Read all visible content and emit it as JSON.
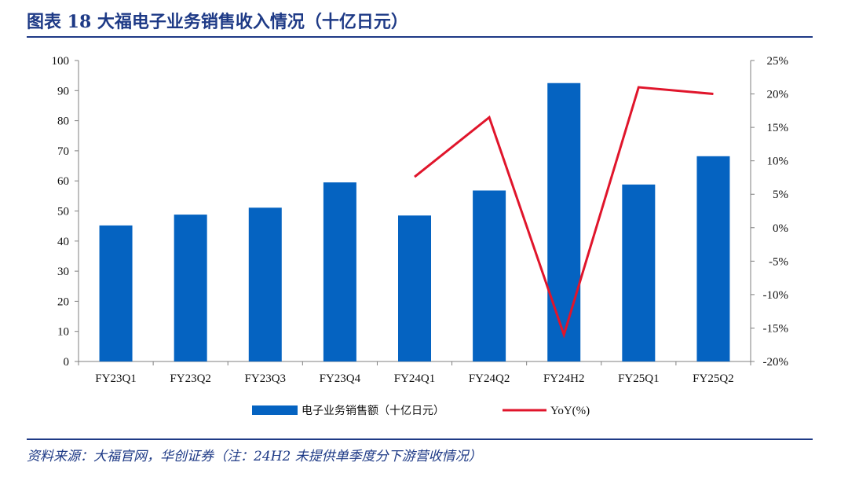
{
  "header": {
    "title": "图表 18   大福电子业务销售收入情况（十亿日元）"
  },
  "footer": {
    "source": "资料来源：大福官网，华创证券（注：24H2 未提供单季度分下游营收情况）"
  },
  "colors": {
    "bar": "#0563c1",
    "line": "#e0152b",
    "rule": "#1e3a86",
    "axis": "#7f7f7f"
  },
  "chart_data": {
    "type": "bar",
    "categories": [
      "FY23Q1",
      "FY23Q2",
      "FY23Q3",
      "FY23Q4",
      "FY24Q1",
      "FY24Q2",
      "FY24H2",
      "FY25Q1",
      "FY25Q2"
    ],
    "series": [
      {
        "name": "电子业务销售额（十亿日元）",
        "type": "bar",
        "axis": "left",
        "values": [
          45.2,
          48.8,
          51.1,
          59.5,
          48.5,
          56.8,
          92.5,
          58.8,
          68.2
        ]
      },
      {
        "name": "YoY(%)",
        "type": "line",
        "axis": "right",
        "values": [
          null,
          null,
          null,
          null,
          7.6,
          16.5,
          -16.0,
          21.0,
          20.0
        ]
      }
    ],
    "y_left": {
      "range": [
        0,
        100
      ],
      "ticks": [
        "0",
        "10",
        "20",
        "30",
        "40",
        "50",
        "60",
        "70",
        "80",
        "90",
        "100"
      ]
    },
    "y_right": {
      "range": [
        -20,
        25
      ],
      "ticks": [
        "-20%",
        "-15%",
        "-10%",
        "-5%",
        "0%",
        "5%",
        "10%",
        "15%",
        "20%",
        "25%"
      ]
    },
    "grid": false,
    "legend": "bottom"
  }
}
